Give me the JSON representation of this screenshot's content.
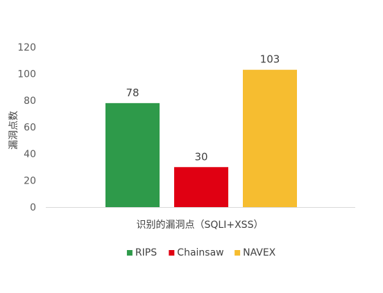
{
  "chart_data": {
    "type": "bar",
    "title": "",
    "xlabel": "识别的漏洞点（SQLI+XSS）",
    "ylabel": "漏洞点数",
    "ylim": [
      0,
      120
    ],
    "yticks": [
      0,
      20,
      40,
      60,
      80,
      100,
      120
    ],
    "grid": false,
    "legend_position": "bottom",
    "series": [
      {
        "name": "RIPS",
        "value": 78,
        "color": "#2e9a4a"
      },
      {
        "name": "Chainsaw",
        "value": 30,
        "color": "#e00012"
      },
      {
        "name": "NAVEX",
        "value": 103,
        "color": "#f6bd30"
      }
    ]
  }
}
